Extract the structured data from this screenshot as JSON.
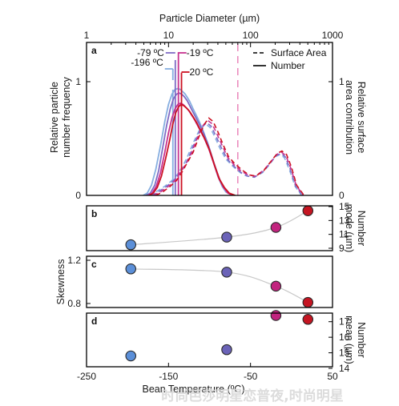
{
  "chart_data": [
    {
      "panel": "a",
      "type": "line",
      "top_axis": {
        "label": "Particle Diameter (µm)",
        "scale": "log",
        "range": [
          1,
          1000
        ],
        "ticks": [
          {
            "value": 1,
            "label": "1"
          },
          {
            "value": 10,
            "label": "10"
          },
          {
            "value": 100,
            "label": "100"
          },
          {
            "value": 1000,
            "label": "1000"
          }
        ]
      },
      "left_axis": {
        "label": [
          "Relative particle",
          "number frequency"
        ],
        "range": [
          0,
          1.0
        ],
        "ticks": [
          {
            "value": 0,
            "label": "0"
          },
          {
            "value": 1,
            "label": "1"
          }
        ]
      },
      "right_axis": {
        "label": [
          "Relative surface",
          "area contribution"
        ],
        "range": [
          0,
          1.0
        ],
        "ticks": [
          {
            "value": 0,
            "label": "0"
          },
          {
            "value": 1,
            "label": "1"
          }
        ]
      },
      "legend": {
        "position": "top-right",
        "entries": [
          {
            "label": "Surface Area",
            "style": "dashed"
          },
          {
            "label": "Number",
            "style": "solid"
          }
        ]
      },
      "reference_line": {
        "x": 70,
        "style": "dashed",
        "color": "#e87db5"
      },
      "series": [
        {
          "temperature": "-196 ºC",
          "color": "#86aee0",
          "number": {
            "x": [
              4.9,
              5.5,
              6.2,
              7,
              8,
              9,
              10,
              11,
              12,
              13,
              14,
              15,
              16,
              18,
              20,
              23,
              26,
              30,
              35,
              40,
              45,
              50,
              60
            ],
            "y": [
              0,
              0.02,
              0.09,
              0.23,
              0.44,
              0.65,
              0.8,
              0.89,
              0.93,
              0.94,
              0.93,
              0.91,
              0.89,
              0.83,
              0.76,
              0.67,
              0.58,
              0.46,
              0.3,
              0.17,
              0.08,
              0.03,
              0
            ]
          },
          "surface_area": {
            "x": [
              5.8,
              7,
              9,
              11,
              13,
              15,
              17,
              20,
              24,
              28,
              32,
              37,
              42,
              50,
              60,
              75,
              90,
              110,
              140,
              170,
              200,
              230,
              260,
              300,
              350,
              420
            ],
            "y": [
              0,
              0.03,
              0.08,
              0.13,
              0.19,
              0.26,
              0.34,
              0.46,
              0.58,
              0.63,
              0.6,
              0.51,
              0.42,
              0.32,
              0.26,
              0.2,
              0.17,
              0.16,
              0.2,
              0.27,
              0.34,
              0.36,
              0.33,
              0.22,
              0.08,
              0
            ]
          },
          "mode_line": {
            "x": 11.3,
            "top": 0.93
          }
        },
        {
          "temperature": "-79 ºC",
          "color": "#7f6bc4",
          "number": {
            "x": [
              5.3,
              6,
              6.8,
              7.6,
              8.5,
              9.5,
              10.5,
              11.5,
              12.5,
              13.5,
              14.5,
              15.5,
              17,
              19,
              21,
              24,
              27,
              31,
              36,
              41,
              46,
              52,
              60
            ],
            "y": [
              0,
              0.02,
              0.09,
              0.22,
              0.42,
              0.62,
              0.76,
              0.85,
              0.89,
              0.9,
              0.89,
              0.87,
              0.83,
              0.76,
              0.7,
              0.62,
              0.54,
              0.43,
              0.28,
              0.16,
              0.08,
              0.03,
              0
            ]
          },
          "surface_area": {
            "x": [
              6.2,
              7.5,
              9.5,
              11.5,
              13.5,
              16,
              18,
              21,
              25,
              29,
              33,
              38,
              44,
              52,
              62,
              77,
              92,
              112,
              142,
              172,
              205,
              235,
              265,
              305,
              355,
              430
            ],
            "y": [
              0,
              0.03,
              0.08,
              0.13,
              0.19,
              0.27,
              0.35,
              0.47,
              0.59,
              0.64,
              0.61,
              0.52,
              0.42,
              0.32,
              0.26,
              0.2,
              0.17,
              0.16,
              0.21,
              0.28,
              0.35,
              0.37,
              0.34,
              0.23,
              0.08,
              0
            ]
          },
          "mode_line": {
            "x": 12.1,
            "top": 1.19
          }
        },
        {
          "temperature": "-19 ºC",
          "color": "#c7328f",
          "number": {
            "x": [
              5.6,
              6.3,
              7.1,
              8,
              9,
              10,
              11,
              12,
              13,
              14,
              15,
              16,
              17.5,
              19,
              21,
              24,
              27,
              31,
              36,
              41,
              47,
              53,
              62
            ],
            "y": [
              0,
              0.02,
              0.08,
              0.2,
              0.38,
              0.55,
              0.68,
              0.76,
              0.8,
              0.81,
              0.8,
              0.78,
              0.75,
              0.71,
              0.66,
              0.58,
              0.51,
              0.41,
              0.27,
              0.15,
              0.07,
              0.02,
              0
            ]
          },
          "surface_area": {
            "x": [
              6.5,
              8,
              10,
              12,
              14,
              16.5,
              19,
              22,
              26,
              30,
              34,
              39,
              45,
              53,
              63,
              78,
              94,
              114,
              144,
              175,
              208,
              238,
              270,
              310,
              360,
              440
            ],
            "y": [
              0,
              0.03,
              0.08,
              0.13,
              0.2,
              0.28,
              0.37,
              0.49,
              0.61,
              0.66,
              0.63,
              0.54,
              0.44,
              0.33,
              0.27,
              0.21,
              0.18,
              0.17,
              0.22,
              0.29,
              0.36,
              0.38,
              0.35,
              0.24,
              0.09,
              0
            ]
          },
          "mode_line": {
            "x": 13.2,
            "top": 1.26
          }
        },
        {
          "temperature": "20 ºC",
          "color": "#cc1122",
          "number": {
            "x": [
              5.8,
              6.5,
              7.3,
              8.2,
              9.2,
              10.3,
              11.3,
              12.3,
              13.3,
              14.3,
              15.3,
              16.5,
              18,
              20,
              22,
              25,
              28,
              32,
              37,
              42,
              48,
              55,
              65
            ],
            "y": [
              0,
              0.02,
              0.07,
              0.17,
              0.32,
              0.48,
              0.63,
              0.73,
              0.78,
              0.8,
              0.79,
              0.77,
              0.74,
              0.69,
              0.64,
              0.56,
              0.49,
              0.39,
              0.25,
              0.14,
              0.07,
              0.02,
              0
            ]
          },
          "surface_area": {
            "x": [
              7,
              8.5,
              10.5,
              12.5,
              14.5,
              17,
              20,
              23,
              27,
              31,
              35,
              40,
              46,
              54,
              64,
              80,
              96,
              116,
              146,
              178,
              212,
              242,
              275,
              315,
              365,
              450
            ],
            "y": [
              0,
              0.03,
              0.08,
              0.13,
              0.2,
              0.29,
              0.38,
              0.5,
              0.62,
              0.68,
              0.65,
              0.56,
              0.45,
              0.34,
              0.28,
              0.22,
              0.18,
              0.17,
              0.22,
              0.3,
              0.37,
              0.39,
              0.36,
              0.25,
              0.09,
              0
            ]
          },
          "mode_line": {
            "x": 14.4,
            "top": 1.08
          }
        }
      ],
      "annotations": [
        {
          "text": "-79 ºC",
          "color_ref": 1
        },
        {
          "text": "-196 ºC",
          "color_ref": 0
        },
        {
          "text": "-19 ºC",
          "color_ref": 2
        },
        {
          "text": "20 ºC",
          "color_ref": 3
        }
      ]
    },
    {
      "panel": "b",
      "type": "scatter",
      "right_axis": {
        "label": [
          "Number",
          "mode (µm)"
        ],
        "range": [
          9,
          15
        ],
        "ticks": [
          {
            "value": 9,
            "label": "9"
          },
          {
            "value": 11,
            "label": "11"
          },
          {
            "value": 13,
            "label": "13"
          },
          {
            "value": 15,
            "label": "15"
          }
        ]
      },
      "x": [
        -196,
        -79,
        -19,
        20
      ],
      "y": [
        9.5,
        10.6,
        12.0,
        14.4
      ],
      "colors": [
        "#5b8fd8",
        "#6b63b8",
        "#c2247f",
        "#c51522"
      ],
      "trend_line": true
    },
    {
      "panel": "c",
      "type": "scatter",
      "left_axis": {
        "label": "Skewness",
        "range": [
          0.8,
          1.2
        ],
        "ticks": [
          {
            "value": 0.8,
            "label": "0.8"
          },
          {
            "value": 1.2,
            "label": "1.2"
          }
        ]
      },
      "x": [
        -196,
        -79,
        -19,
        20
      ],
      "y": [
        1.12,
        1.09,
        0.96,
        0.81
      ],
      "colors": [
        "#5b8fd8",
        "#6b63b8",
        "#c2247f",
        "#c51522"
      ],
      "trend_line": true
    },
    {
      "panel": "d",
      "type": "scatter",
      "right_axis": {
        "label": [
          "Number",
          "mean (µm)"
        ],
        "range": [
          14,
          17.5
        ],
        "ticks": [
          {
            "value": 14,
            "label": "14"
          },
          {
            "value": 15,
            "label": "15"
          },
          {
            "value": 16,
            "label": "16"
          },
          {
            "value": 17,
            "label": "17"
          }
        ]
      },
      "x": [
        -196,
        -79,
        -19,
        20
      ],
      "y": [
        14.8,
        15.2,
        17.4,
        17.15
      ],
      "colors": [
        "#5b8fd8",
        "#6b63b8",
        "#c2247f",
        "#c51522"
      ],
      "trend_line": false
    }
  ],
  "x_axis": {
    "label": "Bean Temperature (ºC)",
    "range": [
      -250,
      50
    ],
    "ticks": [
      {
        "value": -250,
        "label": "-250"
      },
      {
        "value": -150,
        "label": "-150"
      },
      {
        "value": -50,
        "label": "-50"
      },
      {
        "value": 50,
        "label": "50"
      }
    ]
  },
  "watermark": "时尚芭莎明星恋普夜,时尚明星"
}
